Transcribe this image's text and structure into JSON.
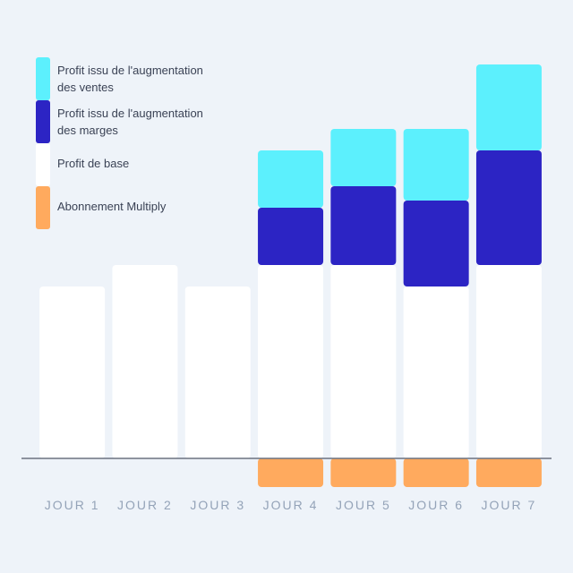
{
  "chart_data": {
    "type": "stacked-bar",
    "categories": [
      "JOUR 1",
      "JOUR 2",
      "JOUR 3",
      "JOUR 4",
      "JOUR 5",
      "JOUR 6",
      "JOUR 7"
    ],
    "series": [
      {
        "name": "Profit de base",
        "color": "#ffffff",
        "values": [
          12,
          13.5,
          12,
          13.5,
          13.5,
          12,
          13.5
        ]
      },
      {
        "name": "Profit issu de l'augmentation des marges",
        "color": "#2c24c4",
        "values": [
          null,
          null,
          null,
          4,
          5.5,
          6,
          8
        ]
      },
      {
        "name": "Profit issu de l'augmentation des ventes",
        "color": "#5cf0fd",
        "values": [
          null,
          null,
          null,
          4,
          4,
          5,
          6
        ]
      },
      {
        "name": "Abonnement Multiply",
        "color": "#ffaa5e",
        "values": [
          null,
          null,
          null,
          -2,
          -2,
          -2,
          -2
        ]
      }
    ],
    "legend_order": [
      2,
      1,
      0,
      3
    ],
    "ylim": [
      -2,
      27.5
    ]
  }
}
